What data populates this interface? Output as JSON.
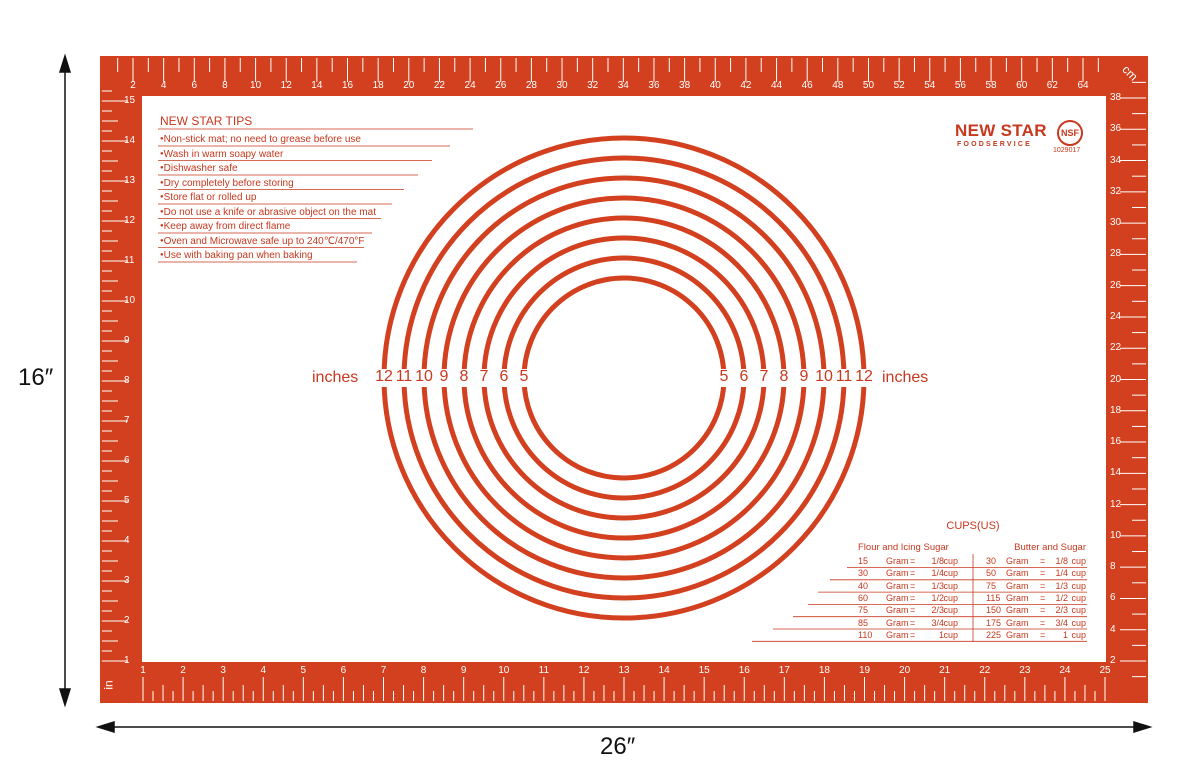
{
  "colors": {
    "mat": "#d2401f",
    "text": "#c8381e",
    "surface": "#ffffff",
    "dimension": "#111111"
  },
  "dimensions": {
    "height": "16″",
    "width": "26″"
  },
  "rulers": {
    "top_unit": "cm",
    "top_labels": [
      "2",
      "4",
      "6",
      "8",
      "10",
      "12",
      "14",
      "16",
      "18",
      "20",
      "22",
      "24",
      "26",
      "28",
      "30",
      "32",
      "34",
      "36",
      "38",
      "40",
      "42",
      "44",
      "46",
      "48",
      "50",
      "52",
      "54",
      "56",
      "58",
      "60",
      "62",
      "64"
    ],
    "right_labels": [
      "2",
      "4",
      "6",
      "8",
      "10",
      "12",
      "14",
      "16",
      "18",
      "20",
      "22",
      "24",
      "26",
      "28",
      "30",
      "32",
      "34",
      "36",
      "38"
    ],
    "bottom_unit": "in",
    "bottom_labels": [
      "1",
      "2",
      "3",
      "4",
      "5",
      "6",
      "7",
      "8",
      "9",
      "10",
      "11",
      "12",
      "13",
      "14",
      "15",
      "16",
      "17",
      "18",
      "19",
      "20",
      "21",
      "22",
      "23",
      "24",
      "25"
    ],
    "left_labels": [
      "1",
      "2",
      "3",
      "4",
      "5",
      "6",
      "7",
      "8",
      "9",
      "10",
      "11",
      "12",
      "13",
      "14",
      "15"
    ]
  },
  "circles": {
    "unit": "inches",
    "diameters": [
      5,
      6,
      7,
      8,
      9,
      10,
      11,
      12
    ],
    "labels": [
      "5",
      "6",
      "7",
      "8",
      "9",
      "10",
      "11",
      "12"
    ]
  },
  "tips": {
    "title": "NEW STAR TIPS",
    "items": [
      "Non-stick mat; no need to grease before use",
      "Wash in warm soapy water",
      "Dishwasher safe",
      "Dry completely before storing",
      "Store flat or rolled up",
      "Do not use a knife or abrasive object on the mat",
      "Keep away from direct flame",
      "Oven and Microwave safe up to 240℃/470°F",
      "Use with baking pan when baking"
    ]
  },
  "brand": {
    "name": "NEW STAR",
    "sub": "FOODSERVICE",
    "cert": "NSF",
    "cert_number": "1029017"
  },
  "cups": {
    "title": "CUPS(US)",
    "left_header": "Flour and Icing Sugar",
    "right_header": "Butter and Sugar",
    "left": [
      [
        "15",
        "Gram",
        "=",
        "1/8",
        "cup"
      ],
      [
        "30",
        "Gram",
        "=",
        "1/4",
        "cup"
      ],
      [
        "40",
        "Gram",
        "=",
        "1/3",
        "cup"
      ],
      [
        "60",
        "Gram",
        "=",
        "1/2",
        "cup"
      ],
      [
        "75",
        "Gram",
        "=",
        "2/3",
        "cup"
      ],
      [
        "85",
        "Gram",
        "=",
        "3/4",
        "cup"
      ],
      [
        "110",
        "Gram",
        "=",
        "1",
        "cup"
      ]
    ],
    "right": [
      [
        "30",
        "Gram",
        "=",
        "1/8",
        "cup"
      ],
      [
        "50",
        "Gram",
        "=",
        "1/4",
        "cup"
      ],
      [
        "75",
        "Gram",
        "=",
        "1/3",
        "cup"
      ],
      [
        "115",
        "Gram",
        "=",
        "1/2",
        "cup"
      ],
      [
        "150",
        "Gram",
        "=",
        "2/3",
        "cup"
      ],
      [
        "175",
        "Gram",
        "=",
        "3/4",
        "cup"
      ],
      [
        "225",
        "Gram",
        "=",
        "1",
        "cup"
      ]
    ]
  }
}
